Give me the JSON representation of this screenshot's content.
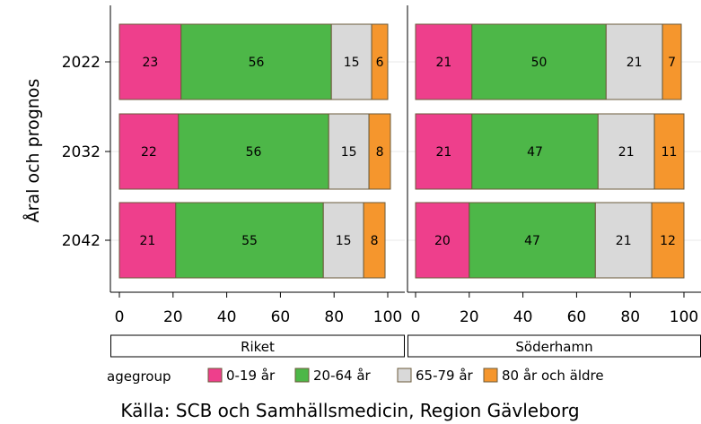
{
  "chart_data": {
    "type": "bar",
    "orientation": "horizontal",
    "stacked": true,
    "ylabel": "Åral och prognos",
    "caption": "Källa: SCB och Samhällsmedicin, Region Gävleborg",
    "categories": [
      "2022",
      "2032",
      "2042"
    ],
    "xlim": [
      0,
      100
    ],
    "xticks": [
      "0",
      "20",
      "40",
      "60",
      "80",
      "100"
    ],
    "legend": {
      "title": "agegroup",
      "placement": "bottom",
      "entries": [
        "0-19 år",
        "20-64 år",
        "65-79 år",
        "80 år och äldre"
      ]
    },
    "colors": [
      "#ee3f8c",
      "#4db748",
      "#d9d9d9",
      "#f5962d"
    ],
    "panels": [
      {
        "name": "Riket",
        "series": [
          {
            "name": "0-19 år",
            "values": [
              23,
              22,
              21
            ]
          },
          {
            "name": "20-64 år",
            "values": [
              56,
              56,
              55
            ]
          },
          {
            "name": "65-79 år",
            "values": [
              15,
              15,
              15
            ]
          },
          {
            "name": "80 år och äldre",
            "values": [
              6,
              8,
              8
            ]
          }
        ]
      },
      {
        "name": "Söderhamn",
        "series": [
          {
            "name": "0-19 år",
            "values": [
              21,
              21,
              20
            ]
          },
          {
            "name": "20-64 år",
            "values": [
              50,
              47,
              47
            ]
          },
          {
            "name": "65-79 år",
            "values": [
              21,
              21,
              21
            ]
          },
          {
            "name": "80 år och äldre",
            "values": [
              7,
              11,
              12
            ]
          }
        ]
      }
    ]
  }
}
